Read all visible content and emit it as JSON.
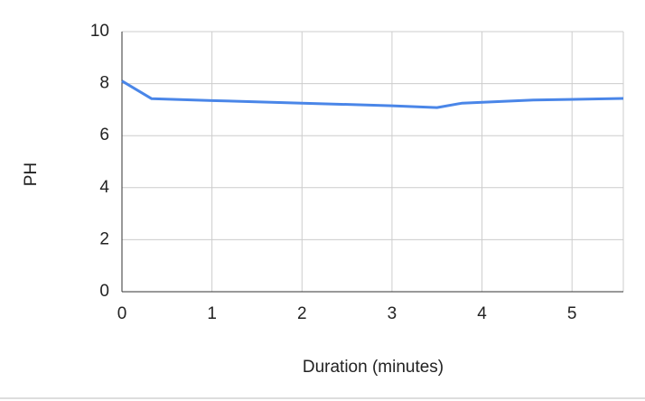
{
  "chart_data": {
    "type": "line",
    "x_label": "Duration (minutes)",
    "y_label": "PH",
    "x": [
      0,
      0.33,
      1,
      2,
      3,
      3.5,
      3.78,
      4.57,
      5.57
    ],
    "series": [
      {
        "name": "PH",
        "color": "#4a86e8",
        "values": [
          8.1,
          7.42,
          7.35,
          7.25,
          7.15,
          7.08,
          7.25,
          7.37,
          7.43
        ]
      }
    ],
    "xlim": [
      0,
      5.57
    ],
    "xticks": [
      0,
      1,
      2,
      3,
      4,
      5
    ],
    "ylim": [
      0,
      10
    ],
    "yticks": [
      0,
      2,
      4,
      6,
      8,
      10
    ],
    "grid": true
  }
}
